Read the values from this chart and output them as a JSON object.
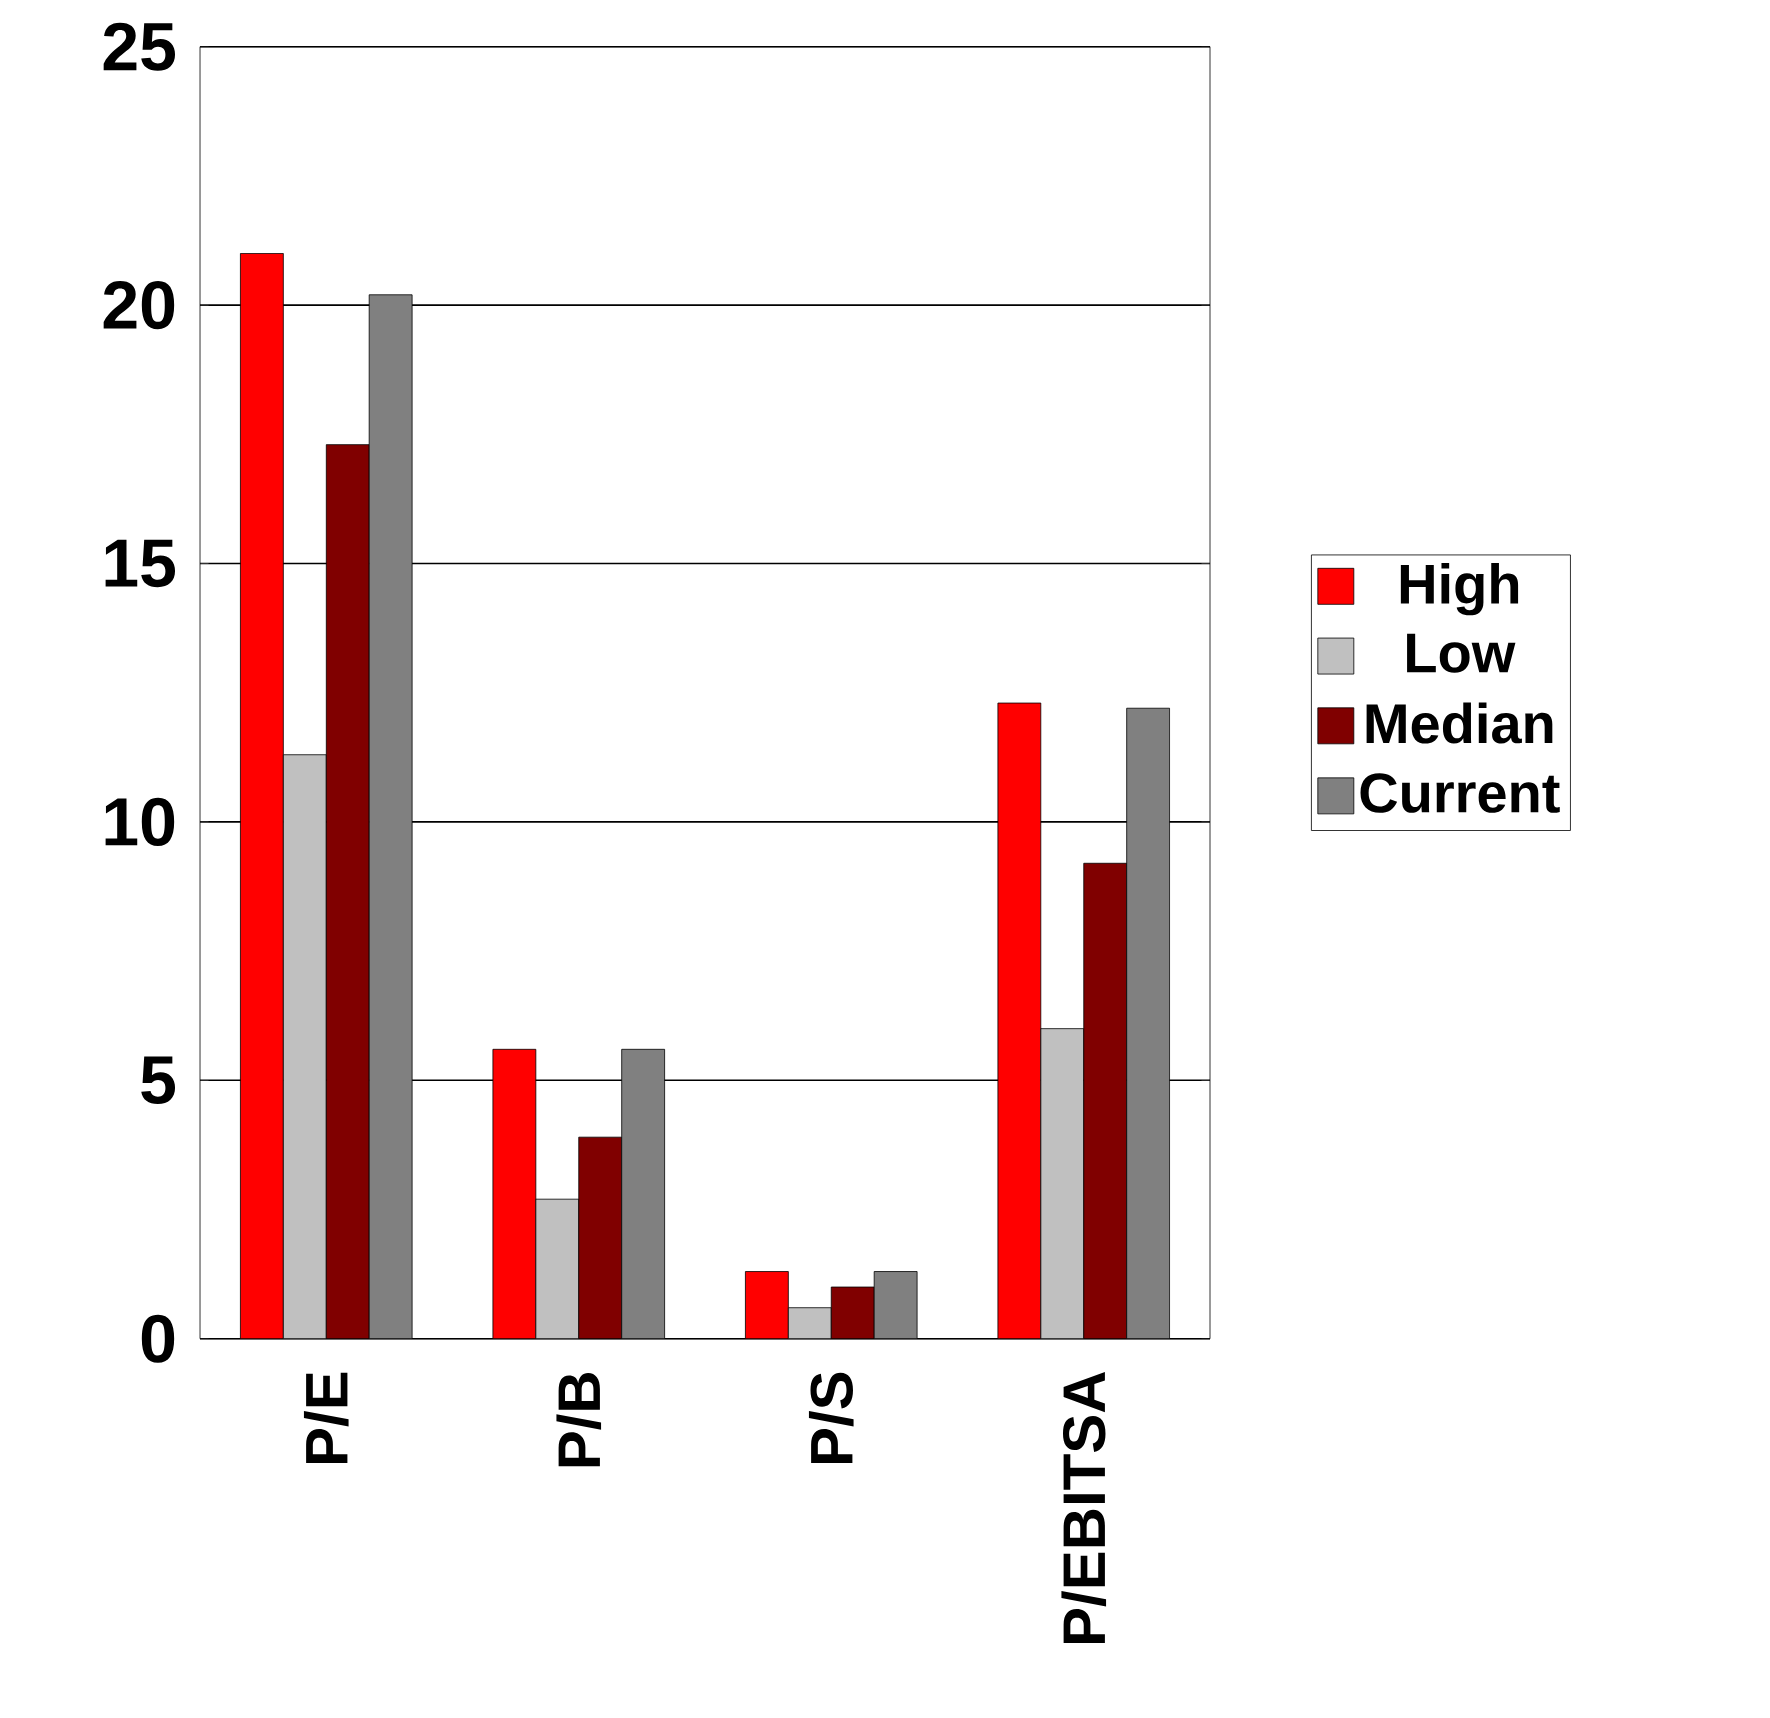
{
  "chart_data": {
    "type": "bar",
    "categories": [
      "P/E",
      "P/B",
      "P/S",
      "P/EBITSA"
    ],
    "series": [
      {
        "name": "High",
        "color": "#ff0000",
        "values": [
          21,
          5.6,
          1.3,
          12.3
        ]
      },
      {
        "name": "Low",
        "color": "#c0c0c0",
        "values": [
          11.3,
          2.7,
          0.6,
          6.0
        ]
      },
      {
        "name": "Median",
        "color": "#800000",
        "values": [
          17.3,
          3.9,
          1.0,
          9.2
        ]
      },
      {
        "name": "Current",
        "color": "#808080",
        "values": [
          20.2,
          5.6,
          1.3,
          12.2
        ]
      }
    ],
    "ylim": [
      0,
      25
    ],
    "yticks": [
      0,
      5,
      10,
      15,
      20,
      25
    ],
    "grid": "y",
    "legend": "right"
  }
}
